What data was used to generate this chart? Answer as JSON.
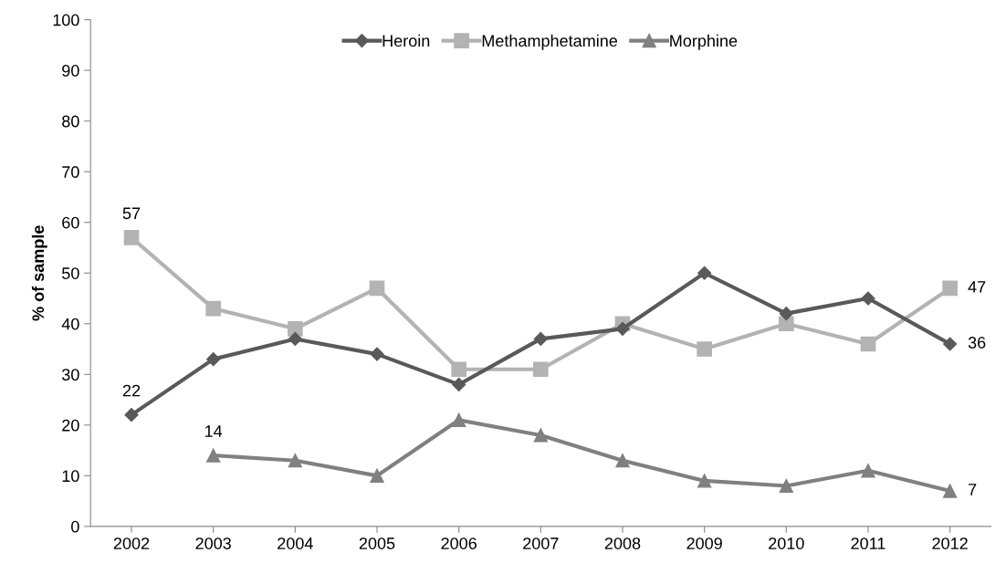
{
  "chart_data": {
    "type": "line",
    "ylabel": "% of sample",
    "categories": [
      "2002",
      "2003",
      "2004",
      "2005",
      "2006",
      "2007",
      "2008",
      "2009",
      "2010",
      "2011",
      "2012"
    ],
    "series": [
      {
        "name": "Heroin",
        "color": "#595959",
        "marker": "diamond",
        "values": [
          22,
          33,
          37,
          34,
          28,
          37,
          39,
          50,
          42,
          45,
          36
        ],
        "value_labels": [
          "22",
          null,
          null,
          null,
          null,
          null,
          null,
          null,
          null,
          null,
          "36"
        ]
      },
      {
        "name": "Methamphetamine",
        "color": "#b3b3b3",
        "marker": "square",
        "values": [
          57,
          43,
          39,
          47,
          31,
          31,
          40,
          35,
          40,
          36,
          47
        ],
        "value_labels": [
          "57",
          null,
          null,
          null,
          null,
          null,
          null,
          null,
          null,
          null,
          "47"
        ]
      },
      {
        "name": "Morphine",
        "color": "#808080",
        "marker": "triangle",
        "values": [
          null,
          14,
          13,
          10,
          21,
          18,
          13,
          9,
          8,
          11,
          7
        ],
        "value_labels": [
          null,
          "14",
          null,
          null,
          null,
          null,
          null,
          null,
          null,
          null,
          "7"
        ]
      }
    ],
    "ylim": [
      0,
      100
    ],
    "yticks": [
      0,
      10,
      20,
      30,
      40,
      50,
      60,
      70,
      80,
      90,
      100
    ],
    "grid": false,
    "legend": "top",
    "line_style": "solid"
  }
}
